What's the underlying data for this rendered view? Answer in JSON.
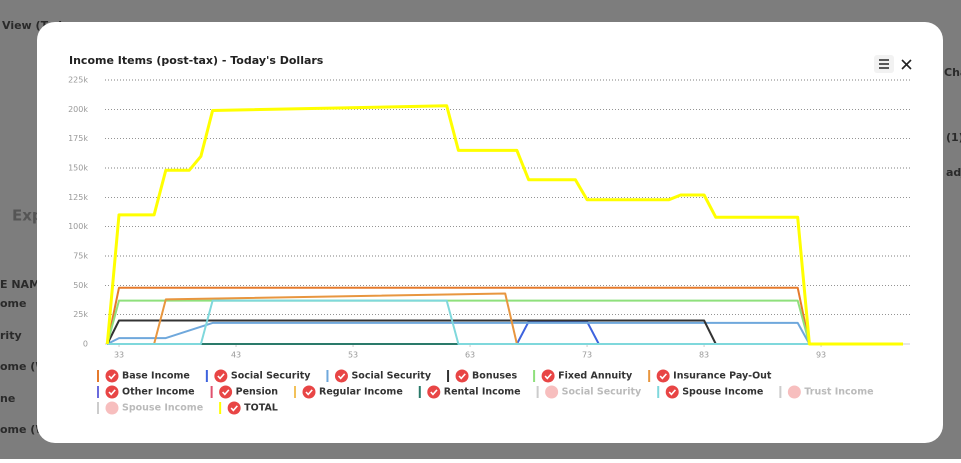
{
  "background": [
    "View (Tod",
    "Exp",
    "E NAM",
    "ome",
    "rity",
    "ome (WI",
    "ne",
    "ome (WI",
    "Chan",
    "(1)",
    "adju"
  ],
  "chart_data": {
    "type": "line",
    "title": "Income Items (post-tax) - Today's Dollars",
    "xlim": [
      31.8,
      100.6
    ],
    "xticks": [
      33,
      43,
      53,
      63,
      73,
      83,
      93
    ],
    "ylim": [
      0,
      225000
    ],
    "yticks": [
      0,
      {
        "value": 25000,
        "label": "25k"
      },
      {
        "value": 50000,
        "label": "50k"
      },
      {
        "value": 75000,
        "label": "75k"
      },
      {
        "value": 100000,
        "label": "100k"
      },
      {
        "value": 125000,
        "label": "125k"
      },
      {
        "value": 150000,
        "label": "150k"
      },
      {
        "value": 175000,
        "label": "175k"
      },
      {
        "value": 200000,
        "label": "200k"
      },
      {
        "value": 225000,
        "label": "225k"
      }
    ],
    "grid": true,
    "series": [
      {
        "name": "Base Income",
        "color": "#e57a2c",
        "visible": true,
        "x": [
          32,
          33,
          91,
          92,
          100
        ],
        "values": [
          0,
          48000,
          48000,
          0,
          0
        ]
      },
      {
        "name": "Social Security",
        "color": "#3d63de",
        "visible": true,
        "x": [
          32,
          67,
          68,
          73,
          74,
          100
        ],
        "values": [
          0,
          0,
          19000,
          19000,
          0,
          0
        ]
      },
      {
        "name": "Social Security",
        "color": "#6fa8dc",
        "visible": true,
        "x": [
          32,
          33,
          37,
          41,
          91,
          92,
          100
        ],
        "values": [
          0,
          5000,
          5000,
          18000,
          18000,
          0,
          0
        ]
      },
      {
        "name": "Bonuses",
        "color": "#333333",
        "visible": true,
        "x": [
          32,
          33,
          83,
          84,
          100
        ],
        "values": [
          0,
          20000,
          20000,
          0,
          0
        ]
      },
      {
        "name": "Fixed Annuity",
        "color": "#8fe07c",
        "visible": true,
        "x": [
          32,
          33,
          91,
          92,
          100
        ],
        "values": [
          0,
          37000,
          37000,
          0,
          0
        ]
      },
      {
        "name": "Insurance Pay-Out",
        "color": "#e8963f",
        "visible": true,
        "x": [
          32,
          36,
          37,
          66,
          67,
          100
        ],
        "values": [
          0,
          0,
          38000,
          43000,
          0,
          0
        ]
      },
      {
        "name": "Other Income",
        "color": "#6a6adc",
        "visible": true,
        "x": [
          32,
          100
        ],
        "values": [
          0,
          0
        ]
      },
      {
        "name": "Pension",
        "color": "#e0506e",
        "visible": true,
        "x": [
          32,
          100
        ],
        "values": [
          0,
          0
        ]
      },
      {
        "name": "Regular Income",
        "color": "#f2c15a",
        "visible": true,
        "x": [
          32,
          100
        ],
        "values": [
          0,
          0
        ]
      },
      {
        "name": "Rental Income",
        "color": "#2a7a6a",
        "visible": true,
        "x": [
          32,
          100
        ],
        "values": [
          0,
          0
        ]
      },
      {
        "name": "Social Security",
        "color": "#cccccc",
        "visible": false,
        "x": [
          32,
          100
        ],
        "values": [
          0,
          0
        ]
      },
      {
        "name": "Spouse Income",
        "color": "#7fd8dc",
        "visible": true,
        "x": [
          32,
          40,
          41,
          61,
          62,
          100
        ],
        "values": [
          0,
          0,
          37000,
          37000,
          0,
          0
        ]
      },
      {
        "name": "Trust Income",
        "color": "#cccccc",
        "visible": false,
        "x": [
          32,
          100
        ],
        "values": [
          0,
          0
        ]
      },
      {
        "name": "Spouse Income",
        "color": "#cccccc",
        "visible": false,
        "x": [
          32,
          100
        ],
        "values": [
          0,
          0
        ]
      },
      {
        "name": "TOTAL",
        "color": "#ffff00",
        "visible": true,
        "x": [
          32,
          33,
          36,
          37,
          39,
          40,
          41,
          61,
          62,
          67,
          68,
          72,
          73,
          80,
          81,
          83,
          84,
          91,
          92,
          100
        ],
        "values": [
          0,
          110000,
          110000,
          148000,
          148000,
          160000,
          199000,
          203000,
          165000,
          165000,
          140000,
          140000,
          123000,
          123000,
          127000,
          127000,
          108000,
          108000,
          0,
          0
        ]
      }
    ]
  }
}
